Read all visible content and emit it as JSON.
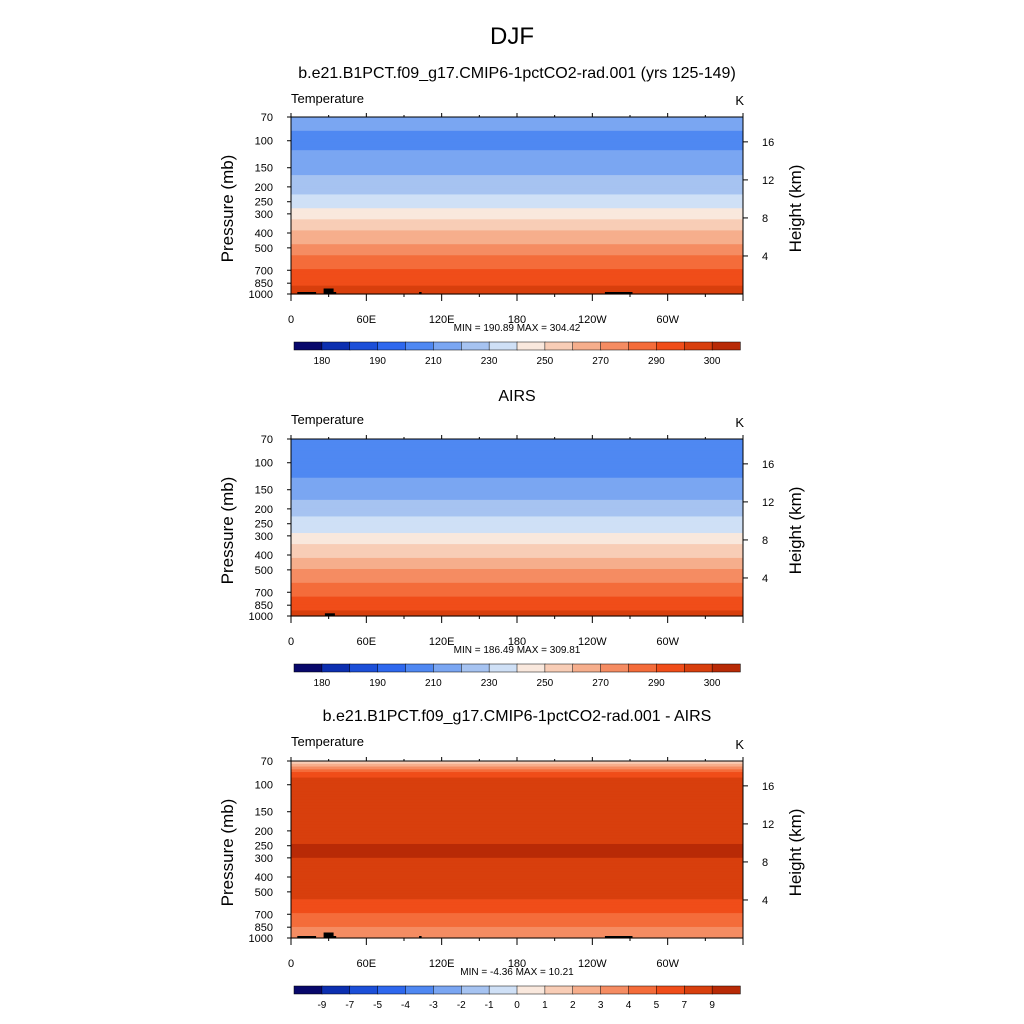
{
  "figure_title": "DJF",
  "panels": [
    {
      "title": "b.e21.B1PCT.f09_g17.CMIP6-1pctCO2-rad.001 (yrs 125-149)",
      "field_label": "Temperature",
      "units": "K",
      "stats": "MIN = 190.89  MAX = 304.42",
      "colorbar_labels": [
        "180",
        "190",
        "210",
        "230",
        "250",
        "270",
        "290",
        "300"
      ]
    },
    {
      "title": "AIRS",
      "field_label": "Temperature",
      "units": "K",
      "stats": "MIN = 186.49  MAX = 309.81",
      "colorbar_labels": [
        "180",
        "190",
        "210",
        "230",
        "250",
        "270",
        "290",
        "300"
      ]
    },
    {
      "title": "b.e21.B1PCT.f09_g17.CMIP6-1pctCO2-rad.001 - AIRS",
      "field_label": "Temperature",
      "units": "K",
      "stats": "MIN =  -4.36  MAX =  10.21",
      "colorbar_labels": [
        "-9",
        "-7",
        "-5",
        "-4",
        "-3",
        "-2",
        "-1",
        "0",
        "1",
        "2",
        "3",
        "4",
        "5",
        "7",
        "9"
      ]
    }
  ],
  "axes": {
    "ylabel_left": "Pressure (mb)",
    "ylabel_right": "Height (km)",
    "pressure_ticks": [
      70,
      100,
      150,
      200,
      250,
      300,
      400,
      500,
      700,
      850,
      1000
    ],
    "pressure_tick_labels": [
      "70",
      "100",
      "150",
      "200",
      "250",
      "300",
      "400",
      "500",
      "700",
      "850",
      "1000"
    ],
    "height_ticks_km": [
      4,
      8,
      12,
      16
    ],
    "height_tick_labels": [
      "4",
      "8",
      "12",
      "16"
    ],
    "lon_ticks_deg": [
      0,
      60,
      120,
      180,
      240,
      300
    ],
    "lon_tick_labels": [
      "0",
      "60E",
      "120E",
      "180",
      "120W",
      "60W"
    ],
    "lon_range": [
      0,
      360
    ],
    "pressure_range": [
      70,
      1000
    ],
    "scale_height_km": 7
  },
  "palettes": {
    "temperature": [
      "#08086b",
      "#0c2fb0",
      "#1c4fd8",
      "#2e68ee",
      "#4f88f2",
      "#7aa6f2",
      "#a6c3f1",
      "#cfe0f6",
      "#f9e8dd",
      "#f8cdb6",
      "#f6ae8c",
      "#f58c62",
      "#f46c3a",
      "#f04d19",
      "#d83f0d",
      "#b82a06",
      "#8c0c02"
    ],
    "difference": [
      "#08086b",
      "#0c2fb0",
      "#1c4fd8",
      "#2e68ee",
      "#4f88f2",
      "#7aa6f2",
      "#a6c3f1",
      "#cfe0f6",
      "#f9e8dd",
      "#f8cdb6",
      "#f6ae8c",
      "#f58c62",
      "#f46c3a",
      "#f04d19",
      "#d83f0d",
      "#b82a06",
      "#8c0c02"
    ],
    "terrain": "#000000"
  },
  "chart_data": [
    {
      "type": "heatmap",
      "title": "b.e21.B1PCT.f09_g17.CMIP6-1pctCO2-rad.001 (yrs 125-149)",
      "xlabel": "",
      "ylabel": "Pressure (mb)",
      "y2label": "Height (km)",
      "field": "Temperature",
      "units": "K",
      "levels": [
        180,
        185,
        190,
        200,
        210,
        220,
        230,
        240,
        250,
        260,
        270,
        280,
        290,
        295,
        300
      ],
      "profile_pressure_mb": [
        70,
        100,
        150,
        200,
        250,
        300,
        400,
        500,
        700,
        850,
        1000
      ],
      "profile_temperature_K": [
        205,
        197,
        207,
        215,
        226,
        235,
        252,
        264,
        280,
        288,
        296
      ],
      "min": 190.89,
      "max": 304.42
    },
    {
      "type": "heatmap",
      "title": "AIRS",
      "xlabel": "",
      "ylabel": "Pressure (mb)",
      "y2label": "Height (km)",
      "field": "Temperature",
      "units": "K",
      "levels": [
        180,
        185,
        190,
        200,
        210,
        220,
        230,
        240,
        250,
        260,
        270,
        280,
        290,
        295,
        300
      ],
      "profile_pressure_mb": [
        70,
        100,
        150,
        200,
        250,
        300,
        400,
        500,
        700,
        850,
        1000
      ],
      "profile_temperature_K": [
        199,
        194,
        205,
        214,
        224,
        233,
        248,
        260,
        277,
        286,
        295
      ],
      "min": 186.49,
      "max": 309.81
    },
    {
      "type": "heatmap",
      "title": "b.e21.B1PCT.f09_g17.CMIP6-1pctCO2-rad.001 - AIRS",
      "xlabel": "",
      "ylabel": "Pressure (mb)",
      "y2label": "Height (km)",
      "field": "Temperature",
      "units": "K",
      "levels": [
        -9,
        -7,
        -5,
        -4,
        -3,
        -2,
        -1,
        0,
        1,
        2,
        3,
        4,
        5,
        7,
        9
      ],
      "profile_pressure_mb": [
        70,
        80,
        100,
        150,
        200,
        250,
        300,
        400,
        500,
        700,
        850,
        1000
      ],
      "profile_temperature_K": [
        0.5,
        3.5,
        6.2,
        6.4,
        6.6,
        7.1,
        7.0,
        6.2,
        5.4,
        4.0,
        3.0,
        2.5
      ],
      "min": -4.36,
      "max": 10.21
    }
  ]
}
